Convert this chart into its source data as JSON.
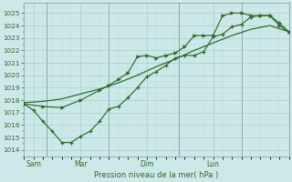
{
  "xlabel": "Pression niveau de la mer( hPa )",
  "bg_color": "#cce8e8",
  "grid_color_major": "#aacccc",
  "grid_color_minor": "#c0dddd",
  "line_color": "#2d6b2d",
  "ylim": [
    1013.5,
    1025.8
  ],
  "yticks": [
    1014,
    1015,
    1016,
    1017,
    1018,
    1019,
    1020,
    1021,
    1022,
    1023,
    1024,
    1025
  ],
  "day_labels": [
    "Sam",
    "Mar",
    "Dim",
    "Lun"
  ],
  "day_positions": [
    0.5,
    3.0,
    6.5,
    10.0
  ],
  "vline_positions": [
    1.2,
    4.5,
    8.2,
    11.5
  ],
  "xlim": [
    0,
    14
  ],
  "line_smooth": {
    "x": [
      0,
      1,
      2,
      3,
      4,
      5,
      6,
      7,
      8,
      9,
      10,
      11,
      12,
      13,
      14
    ],
    "y": [
      1017.8,
      1017.9,
      1018.1,
      1018.5,
      1018.9,
      1019.4,
      1020.0,
      1020.7,
      1021.3,
      1022.0,
      1022.6,
      1023.2,
      1023.7,
      1024.0,
      1023.5
    ]
  },
  "line_arrow": {
    "x": [
      0,
      1,
      2,
      3,
      4,
      4.5,
      5,
      5.5,
      6,
      6.5,
      7,
      7.5,
      8,
      8.5,
      9,
      9.5,
      10,
      10.5,
      11,
      11.5,
      12,
      12.5,
      13,
      13.5,
      14
    ],
    "y": [
      1017.7,
      1017.5,
      1017.4,
      1018.0,
      1018.8,
      1019.2,
      1019.7,
      1020.2,
      1021.5,
      1021.6,
      1021.4,
      1021.6,
      1021.8,
      1022.3,
      1023.2,
      1023.2,
      1023.2,
      1024.8,
      1025.0,
      1025.0,
      1024.8,
      1024.8,
      1024.8,
      1024.0,
      1023.5
    ]
  },
  "line_cross": {
    "x": [
      0,
      0.5,
      1,
      1.5,
      2,
      2.5,
      3,
      3.5,
      4,
      4.5,
      5,
      5.5,
      6,
      6.5,
      7,
      7.5,
      8,
      8.5,
      9,
      9.5,
      10,
      10.5,
      11,
      11.5,
      12,
      12.5,
      13,
      13.5,
      14
    ],
    "y": [
      1017.7,
      1017.2,
      1016.3,
      1015.5,
      1014.6,
      1014.6,
      1015.1,
      1015.5,
      1016.3,
      1017.3,
      1017.5,
      1018.2,
      1019.0,
      1019.9,
      1020.3,
      1020.8,
      1021.4,
      1021.6,
      1021.6,
      1021.9,
      1023.1,
      1023.3,
      1023.9,
      1024.1,
      1024.7,
      1024.8,
      1024.8,
      1024.2,
      1023.5
    ]
  }
}
